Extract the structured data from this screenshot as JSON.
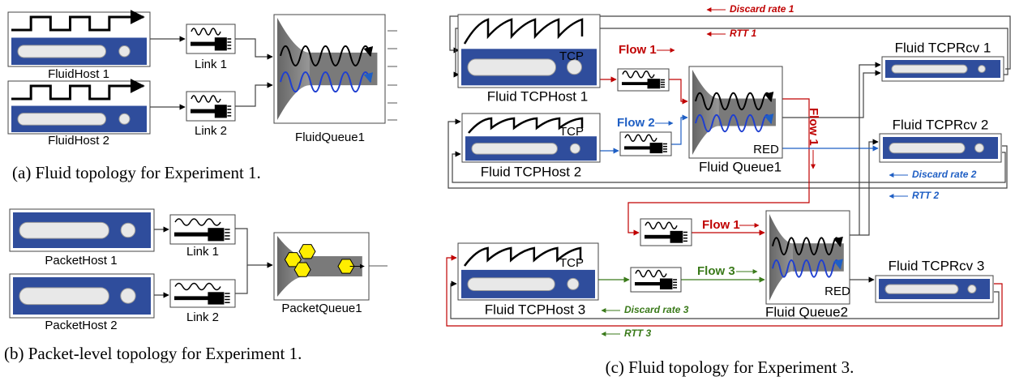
{
  "panel_a": {
    "caption": "(a) Fluid topology for Experiment 1.",
    "hosts": [
      "FluidHost 1",
      "FluidHost 2"
    ],
    "links": [
      "Link 1",
      "Link 2"
    ],
    "queue": "FluidQueue1"
  },
  "panel_b": {
    "caption": "(b) Packet-level topology for Experiment 1.",
    "hosts": [
      "PacketHost 1",
      "PacketHost 2"
    ],
    "links": [
      "Link 1",
      "Link 2"
    ],
    "queue": "PacketQueue1"
  },
  "panel_c": {
    "caption": "(c) Fluid topology for Experiment 3.",
    "hosts": [
      {
        "label": "Fluid TCPHost 1",
        "badge": "TCP"
      },
      {
        "label": "Fluid TCPHost 2",
        "badge": "TCP"
      },
      {
        "label": "Fluid TCPHost 3",
        "badge": "TCP"
      }
    ],
    "queues": [
      {
        "label": "Fluid Queue1",
        "badge": "RED"
      },
      {
        "label": "Fluid Queue2",
        "badge": "RED"
      }
    ],
    "receivers": [
      "Fluid TCPRcv 1",
      "Fluid TCPRcv 2",
      "Fluid TCPRcv 3"
    ],
    "flows": [
      "Flow 1",
      "Flow 2",
      "Flow 1",
      "Flow 1",
      "Flow 3"
    ],
    "feedback": [
      "Discard rate 1",
      "RTT 1",
      "Discard rate 2",
      "RTT 2",
      "Discard rate 3",
      "RTT 3"
    ]
  }
}
